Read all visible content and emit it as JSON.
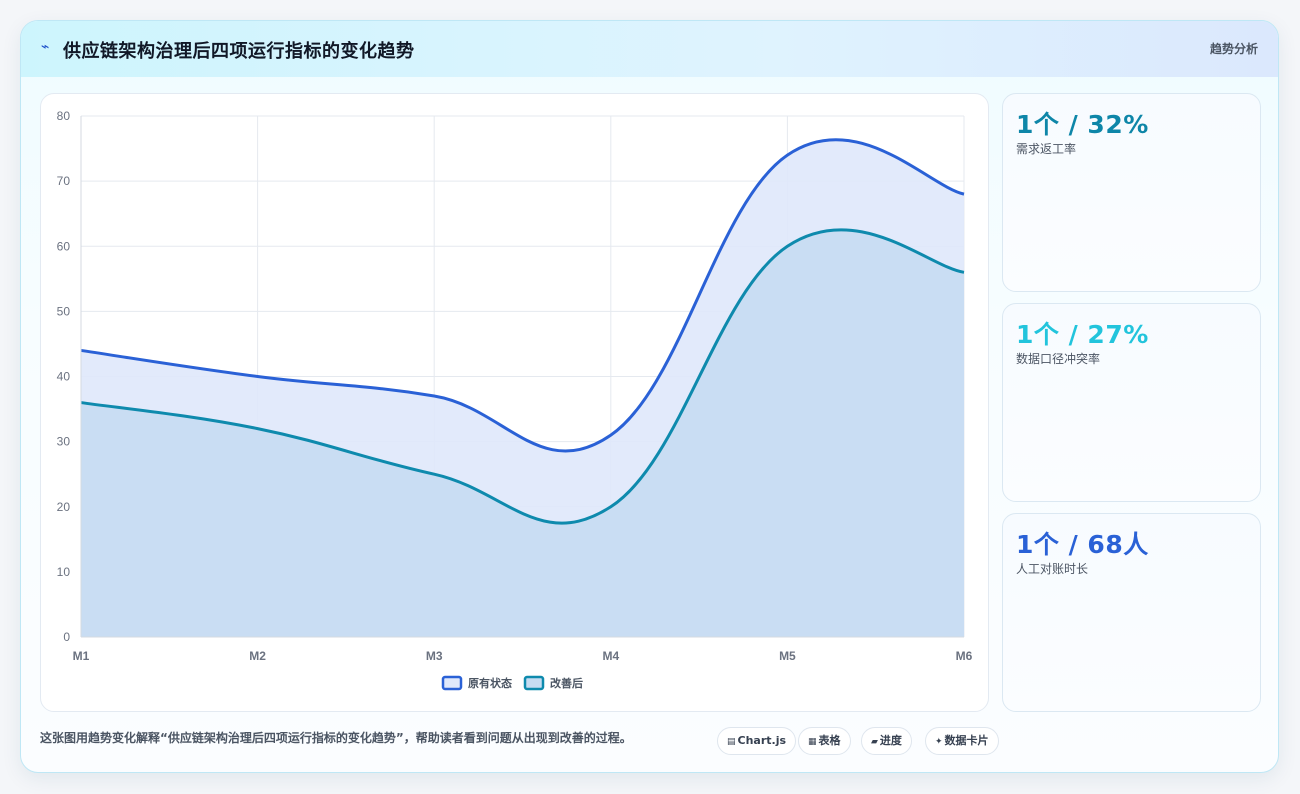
{
  "header": {
    "icon": "trend-icon",
    "title": "供应链架构治理后四项运行指标的变化趋势",
    "link_label": "趋势分析"
  },
  "chart_data": {
    "type": "area",
    "categories": [
      "M1",
      "M2",
      "M3",
      "M4",
      "M5",
      "M6"
    ],
    "ylim": [
      0,
      80
    ],
    "yticks": [
      0,
      10,
      20,
      30,
      40,
      50,
      60,
      70,
      80
    ],
    "grid": true,
    "legend_position": "bottom",
    "series": [
      {
        "name": "原有状态",
        "values": [
          44,
          40,
          37,
          31,
          74,
          68
        ],
        "color": "#2a61d6",
        "fill": "#dfe8fb"
      },
      {
        "name": "改善后",
        "values": [
          36,
          32,
          25,
          20,
          60,
          56
        ],
        "color": "#0e8aad",
        "fill": "#c6dcf2"
      }
    ]
  },
  "kpis": [
    {
      "value": "1个 / 32%",
      "label": "需求返工率",
      "color": "#0e86a8"
    },
    {
      "value": "1个 / 27%",
      "label": "数据口径冲突率",
      "color": "#22c4dc"
    },
    {
      "value": "1个 / 68人",
      "label": "人工对账时长",
      "color": "#2a61d6"
    }
  ],
  "footer": {
    "caption": "这张图用趋势变化解释“供应链架构治理后四项运行指标的变化趋势”，帮助读者看到问题从出现到改善的过程。",
    "chips": [
      {
        "icon": "chart-icon",
        "glyph": "▤",
        "label": "Chart.js"
      },
      {
        "icon": "table-icon",
        "glyph": "▦",
        "label": "表格"
      },
      {
        "icon": "progress-icon",
        "glyph": "▰",
        "label": "进度"
      },
      {
        "icon": "data-card-icon",
        "glyph": "✦",
        "label": "数据卡片"
      }
    ]
  }
}
